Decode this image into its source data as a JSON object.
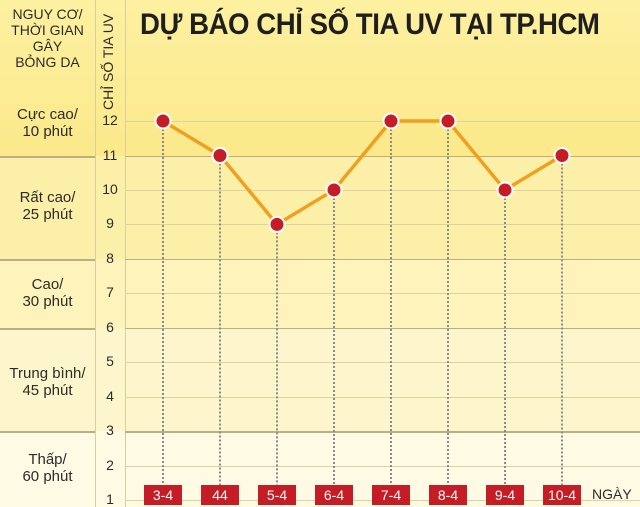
{
  "chart_data": {
    "type": "line",
    "title": "DỰ BÁO CHỈ SỐ TIA UV TẠI TP.HCM",
    "xlabel": "NGÀY",
    "ylabel": "CHỈ SỐ TIA UV",
    "categories": [
      "3-4",
      "44",
      "5-4",
      "6-4",
      "7-4",
      "8-4",
      "9-4",
      "10-4"
    ],
    "series": [
      {
        "name": "Chỉ số tia UV",
        "values": [
          12,
          11,
          9,
          10,
          12,
          12,
          10,
          11
        ]
      }
    ],
    "ylim": [
      1,
      12
    ],
    "yticks": [
      1,
      2,
      3,
      4,
      5,
      6,
      7,
      8,
      9,
      10,
      11,
      12
    ],
    "grid": true,
    "risk_bands": [
      {
        "label": "Cực cao/\n10 phút",
        "line1": "Cực cao/",
        "line2": "10 phút",
        "from": 11,
        "to": 13
      },
      {
        "label": "Rất cao/\n25 phút",
        "line1": "Rất cao/",
        "line2": "25 phút",
        "from": 8,
        "to": 11
      },
      {
        "label": "Cao/\n30 phút",
        "line1": "Cao/",
        "line2": "30 phút",
        "from": 6,
        "to": 8
      },
      {
        "label": "Trung bình/\n45 phút",
        "line1": "Trung bình/",
        "line2": "45 phút",
        "from": 3,
        "to": 6
      },
      {
        "label": "Thấp/\n60 phút",
        "line1": "Thấp/",
        "line2": "60 phút",
        "from": 1,
        "to": 3
      }
    ],
    "band_header": [
      "NGUY CƠ/",
      "THỜI GIAN",
      "GÂY",
      "BỎNG DA"
    ]
  },
  "colors": {
    "line": "#f0a020",
    "marker": "#c41d26",
    "marker_border": "#ffffff",
    "date_label_bg": "#c41d26",
    "band_top": "#fbe98a",
    "band_bottom": "#fefbe6"
  }
}
